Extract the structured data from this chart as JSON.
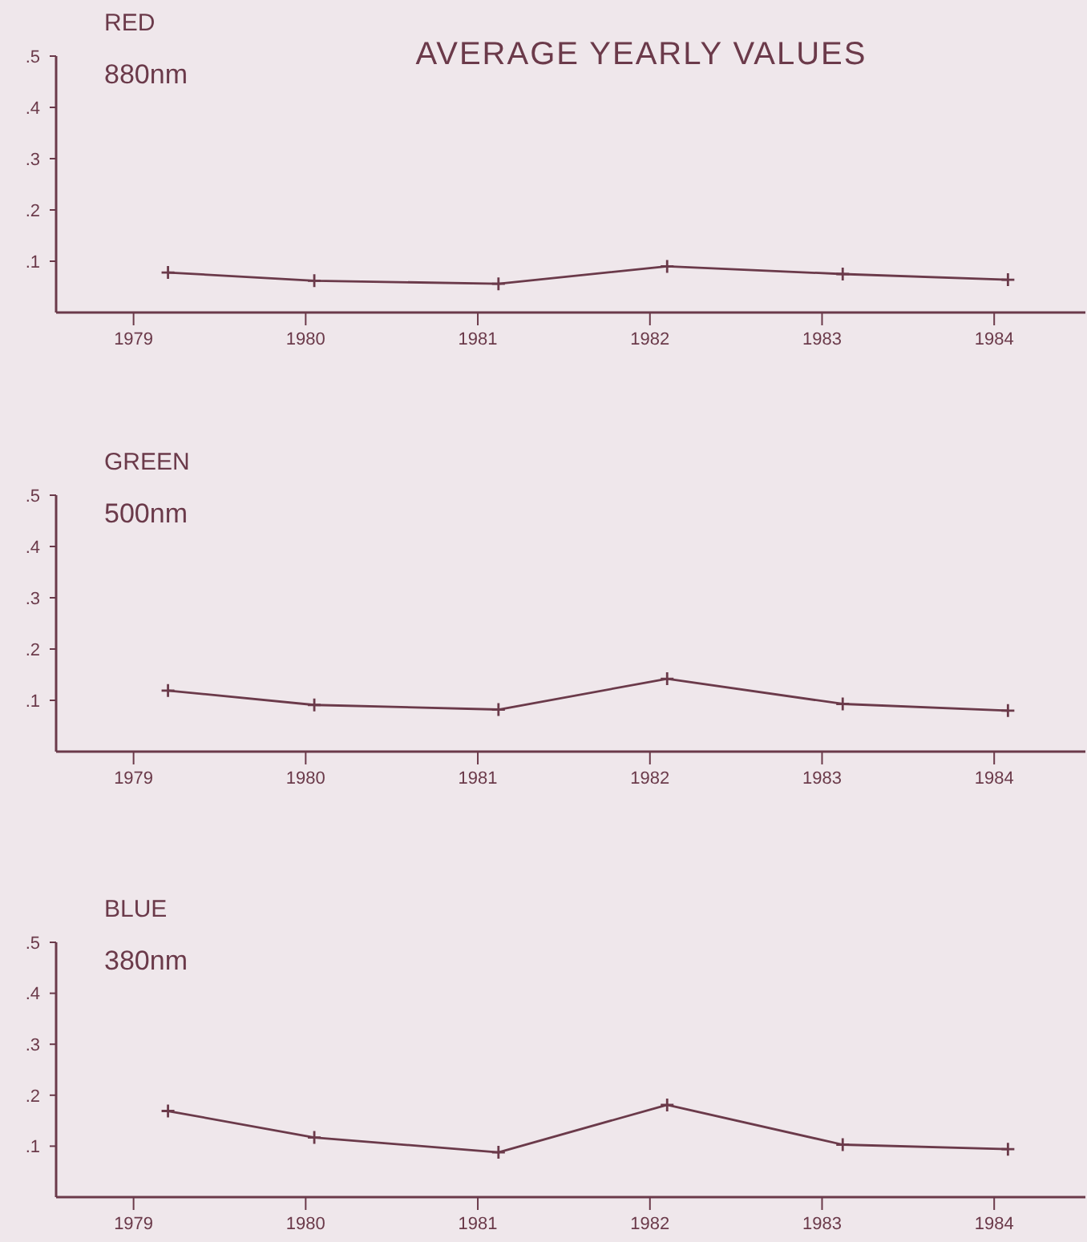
{
  "chart_data": [
    {
      "type": "line",
      "title": "RED",
      "subtitle": "880nm",
      "annotations": [
        "AVERAGE YEARLY VALUES"
      ],
      "x": [
        1979.2,
        1980.05,
        1981.12,
        1982.1,
        1983.12,
        1984.08
      ],
      "series": [
        {
          "color": "#6b3a4a",
          "values": [
            0.078,
            0.062,
            0.056,
            0.09,
            0.075,
            0.064
          ]
        }
      ],
      "xlim": [
        1978.55,
        1984.53
      ],
      "xticks": [
        1979,
        1980,
        1981,
        1982,
        1983,
        1984
      ],
      "ylim": [
        0,
        0.5
      ],
      "yticks": [
        {
          "value": 0.1,
          "label": ".1"
        },
        {
          "value": 0.2,
          "label": ".2"
        },
        {
          "value": 0.3,
          "label": ".3"
        },
        {
          "value": 0.4,
          "label": ".4"
        },
        {
          "value": 0.5,
          "label": ".5"
        }
      ],
      "marker": "cross",
      "grid": false
    },
    {
      "type": "line",
      "title": "GREEN",
      "subtitle": "500nm",
      "x": [
        1979.2,
        1980.05,
        1981.12,
        1982.1,
        1983.12,
        1984.08
      ],
      "series": [
        {
          "color": "#6b3a4a",
          "values": [
            0.119,
            0.091,
            0.082,
            0.142,
            0.093,
            0.08
          ]
        }
      ],
      "xlim": [
        1978.55,
        1984.53
      ],
      "xticks": [
        1979,
        1980,
        1981,
        1982,
        1983,
        1984
      ],
      "ylim": [
        0,
        0.5
      ],
      "yticks": [
        {
          "value": 0.1,
          "label": ".1"
        },
        {
          "value": 0.2,
          "label": ".2"
        },
        {
          "value": 0.3,
          "label": ".3"
        },
        {
          "value": 0.4,
          "label": ".4"
        },
        {
          "value": 0.5,
          "label": ".5"
        }
      ],
      "marker": "cross",
      "grid": false
    },
    {
      "type": "line",
      "title": "BLUE",
      "subtitle": "380nm",
      "x": [
        1979.2,
        1980.05,
        1981.12,
        1982.1,
        1983.12,
        1984.08
      ],
      "series": [
        {
          "color": "#6b3a4a",
          "values": [
            0.169,
            0.117,
            0.088,
            0.181,
            0.103,
            0.094
          ]
        }
      ],
      "xlim": [
        1978.55,
        1984.53
      ],
      "xticks": [
        1979,
        1980,
        1981,
        1982,
        1983,
        1984
      ],
      "ylim": [
        0,
        0.5
      ],
      "yticks": [
        {
          "value": 0.1,
          "label": ".1"
        },
        {
          "value": 0.2,
          "label": ".2"
        },
        {
          "value": 0.3,
          "label": ".3"
        },
        {
          "value": 0.4,
          "label": ".4"
        },
        {
          "value": 0.5,
          "label": ".5"
        }
      ],
      "marker": "cross",
      "grid": false
    }
  ]
}
